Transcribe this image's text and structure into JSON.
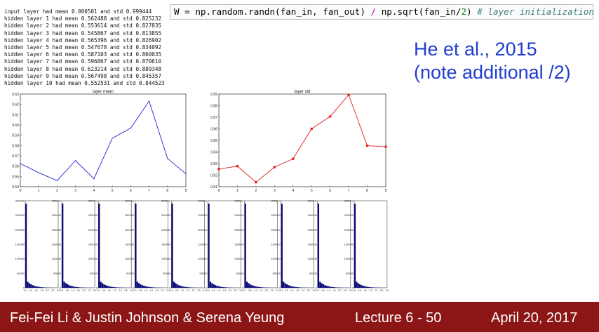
{
  "log_lines": [
    "input layer had mean 0.000501 and std 0.999444",
    "hidden layer 1 had mean 0.562488 and std 0.825232",
    "hidden layer 2 had mean 0.553614 and std 0.827835",
    "hidden layer 3 had mean 0.545867 and std 0.813855",
    "hidden layer 4 had mean 0.565396 and std 0.826902",
    "hidden layer 5 had mean 0.547678 and std 0.834092",
    "hidden layer 6 had mean 0.587103 and std 0.860035",
    "hidden layer 7 had mean 0.596867 and std 0.870610",
    "hidden layer 8 had mean 0.623214 and std 0.889348",
    "hidden layer 9 had mean 0.567498 and std 0.845357",
    "hidden layer 10 had mean 0.552531 and std 0.844523"
  ],
  "code": {
    "lhs": "W = np.random.randn(fan_in, fan_out) ",
    "op": "/",
    "mid": " np.sqrt(fan_in/",
    "num": "2",
    "close": ") ",
    "comment": "# layer initialization"
  },
  "heading": {
    "line1": "He et al., 2015",
    "line2": "(note additional /2)",
    "color": "#1f3dce"
  },
  "footer": {
    "authors": "Fei-Fei Li & Justin Johnson & Serena Yeung",
    "lecture": "Lecture 6 - 50",
    "date": "April 20, 2017",
    "bg": "#8c1515"
  },
  "chart_data": [
    {
      "type": "line",
      "title": "layer mean",
      "color": "#2222cc",
      "x": [
        0,
        1,
        2,
        3,
        4,
        5,
        6,
        7,
        8,
        9
      ],
      "y": [
        0.5625,
        0.5536,
        0.5459,
        0.5654,
        0.5477,
        0.5871,
        0.5969,
        0.6232,
        0.5675,
        0.5525
      ],
      "xlim": [
        0,
        9
      ],
      "ylim": [
        0.54,
        0.63
      ],
      "xticks": [
        "0",
        "1",
        "2",
        "3",
        "4",
        "5",
        "6",
        "7",
        "8",
        "9"
      ],
      "yticks": [
        "0.54",
        "0.55",
        "0.56",
        "0.57",
        "0.58",
        "0.59",
        "0.60",
        "0.61",
        "0.62",
        "0.63"
      ],
      "markers": false
    },
    {
      "type": "line",
      "title": "layer std",
      "color": "#dd2222",
      "x": [
        0,
        1,
        2,
        3,
        4,
        5,
        6,
        7,
        8,
        9
      ],
      "y": [
        0.8252,
        0.8278,
        0.8139,
        0.8269,
        0.8341,
        0.86,
        0.8706,
        0.8893,
        0.8454,
        0.8445
      ],
      "xlim": [
        0,
        9
      ],
      "ylim": [
        0.81,
        0.89
      ],
      "xticks": [
        "0",
        "1",
        "2",
        "3",
        "4",
        "5",
        "6",
        "7",
        "8",
        "9"
      ],
      "yticks": [
        "0.81",
        "0.82",
        "0.83",
        "0.84",
        "0.85",
        "0.86",
        "0.87",
        "0.88",
        "0.89"
      ],
      "markers": true
    },
    {
      "type": "bar",
      "title": "",
      "panels": 10,
      "color": "#0a0a7a",
      "ylim": [
        0,
        300000
      ],
      "yticks": [
        "0",
        "50000",
        "100000",
        "150000",
        "200000",
        "250000",
        "300000"
      ],
      "xticks": [
        "0.0",
        "0.5",
        "1.0",
        "1.5",
        "2.0",
        "2.5",
        "3.0"
      ],
      "xlim": [
        0,
        3
      ],
      "bins": [
        290000,
        21000,
        16000,
        12000,
        9000,
        7000,
        5200,
        4000,
        3100,
        2400,
        1800,
        1400,
        1100,
        800,
        600,
        450,
        340,
        250,
        180,
        120
      ]
    }
  ]
}
